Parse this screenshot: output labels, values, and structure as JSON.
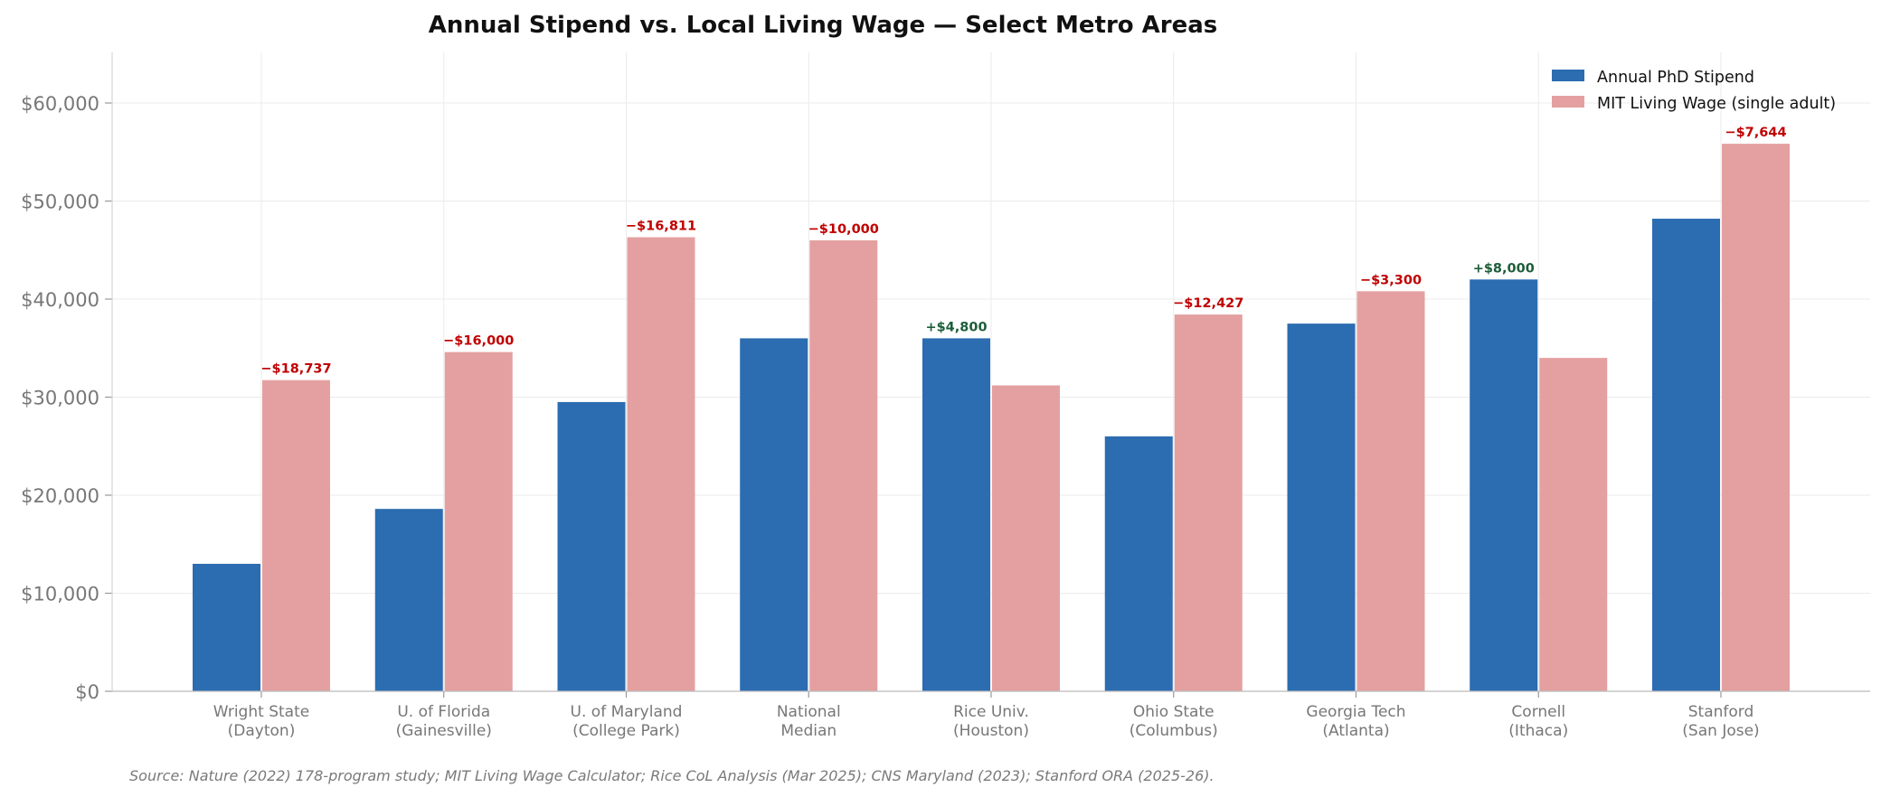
{
  "chart_data": {
    "type": "bar",
    "title": "Annual Stipend vs. Local Living Wage — Select Metro Areas",
    "xlabel": "",
    "ylabel": "",
    "categories": [
      [
        "Wright State",
        "(Dayton)"
      ],
      [
        "U. of Florida",
        "(Gainesville)"
      ],
      [
        "U. of Maryland",
        "(College Park)"
      ],
      [
        "National",
        "Median"
      ],
      [
        "Rice Univ.",
        "(Houston)"
      ],
      [
        "Ohio State",
        "(Columbus)"
      ],
      [
        "Georgia Tech",
        "(Atlanta)"
      ],
      [
        "Cornell",
        "(Ithaca)"
      ],
      [
        "Stanford",
        "(San Jose)"
      ]
    ],
    "series": [
      {
        "name": "Annual PhD Stipend",
        "color": "#2c6cb0",
        "values": [
          13000,
          18600,
          29500,
          36000,
          36000,
          26000,
          37500,
          42000,
          48200
        ]
      },
      {
        "name": "MIT Living Wage (single adult)",
        "color": "#e4a0a0",
        "values": [
          31737,
          34600,
          46311,
          46000,
          31200,
          38427,
          40800,
          34000,
          55844
        ]
      }
    ],
    "gap_labels": [
      "−$18,737",
      "−$16,000",
      "−$16,811",
      "−$10,000",
      "+$4,800",
      "−$12,427",
      "−$3,300",
      "+$8,000",
      "−$7,644"
    ],
    "gap_colors": {
      "negative": "#c00000",
      "positive": "#1e5e3a"
    },
    "ylim": [
      0,
      65000
    ],
    "yticks": [
      0,
      10000,
      20000,
      30000,
      40000,
      50000,
      60000
    ],
    "ytick_labels": [
      "$0",
      "$10,000",
      "$20,000",
      "$30,000",
      "$40,000",
      "$50,000",
      "$60,000"
    ],
    "grid": true,
    "legend_position": "top-right",
    "source_note": "Source: Nature (2022) 178-program study; MIT Living Wage Calculator; Rice CoL Analysis (Mar 2025); CNS Maryland (2023); Stanford ORA (2025-26)."
  }
}
